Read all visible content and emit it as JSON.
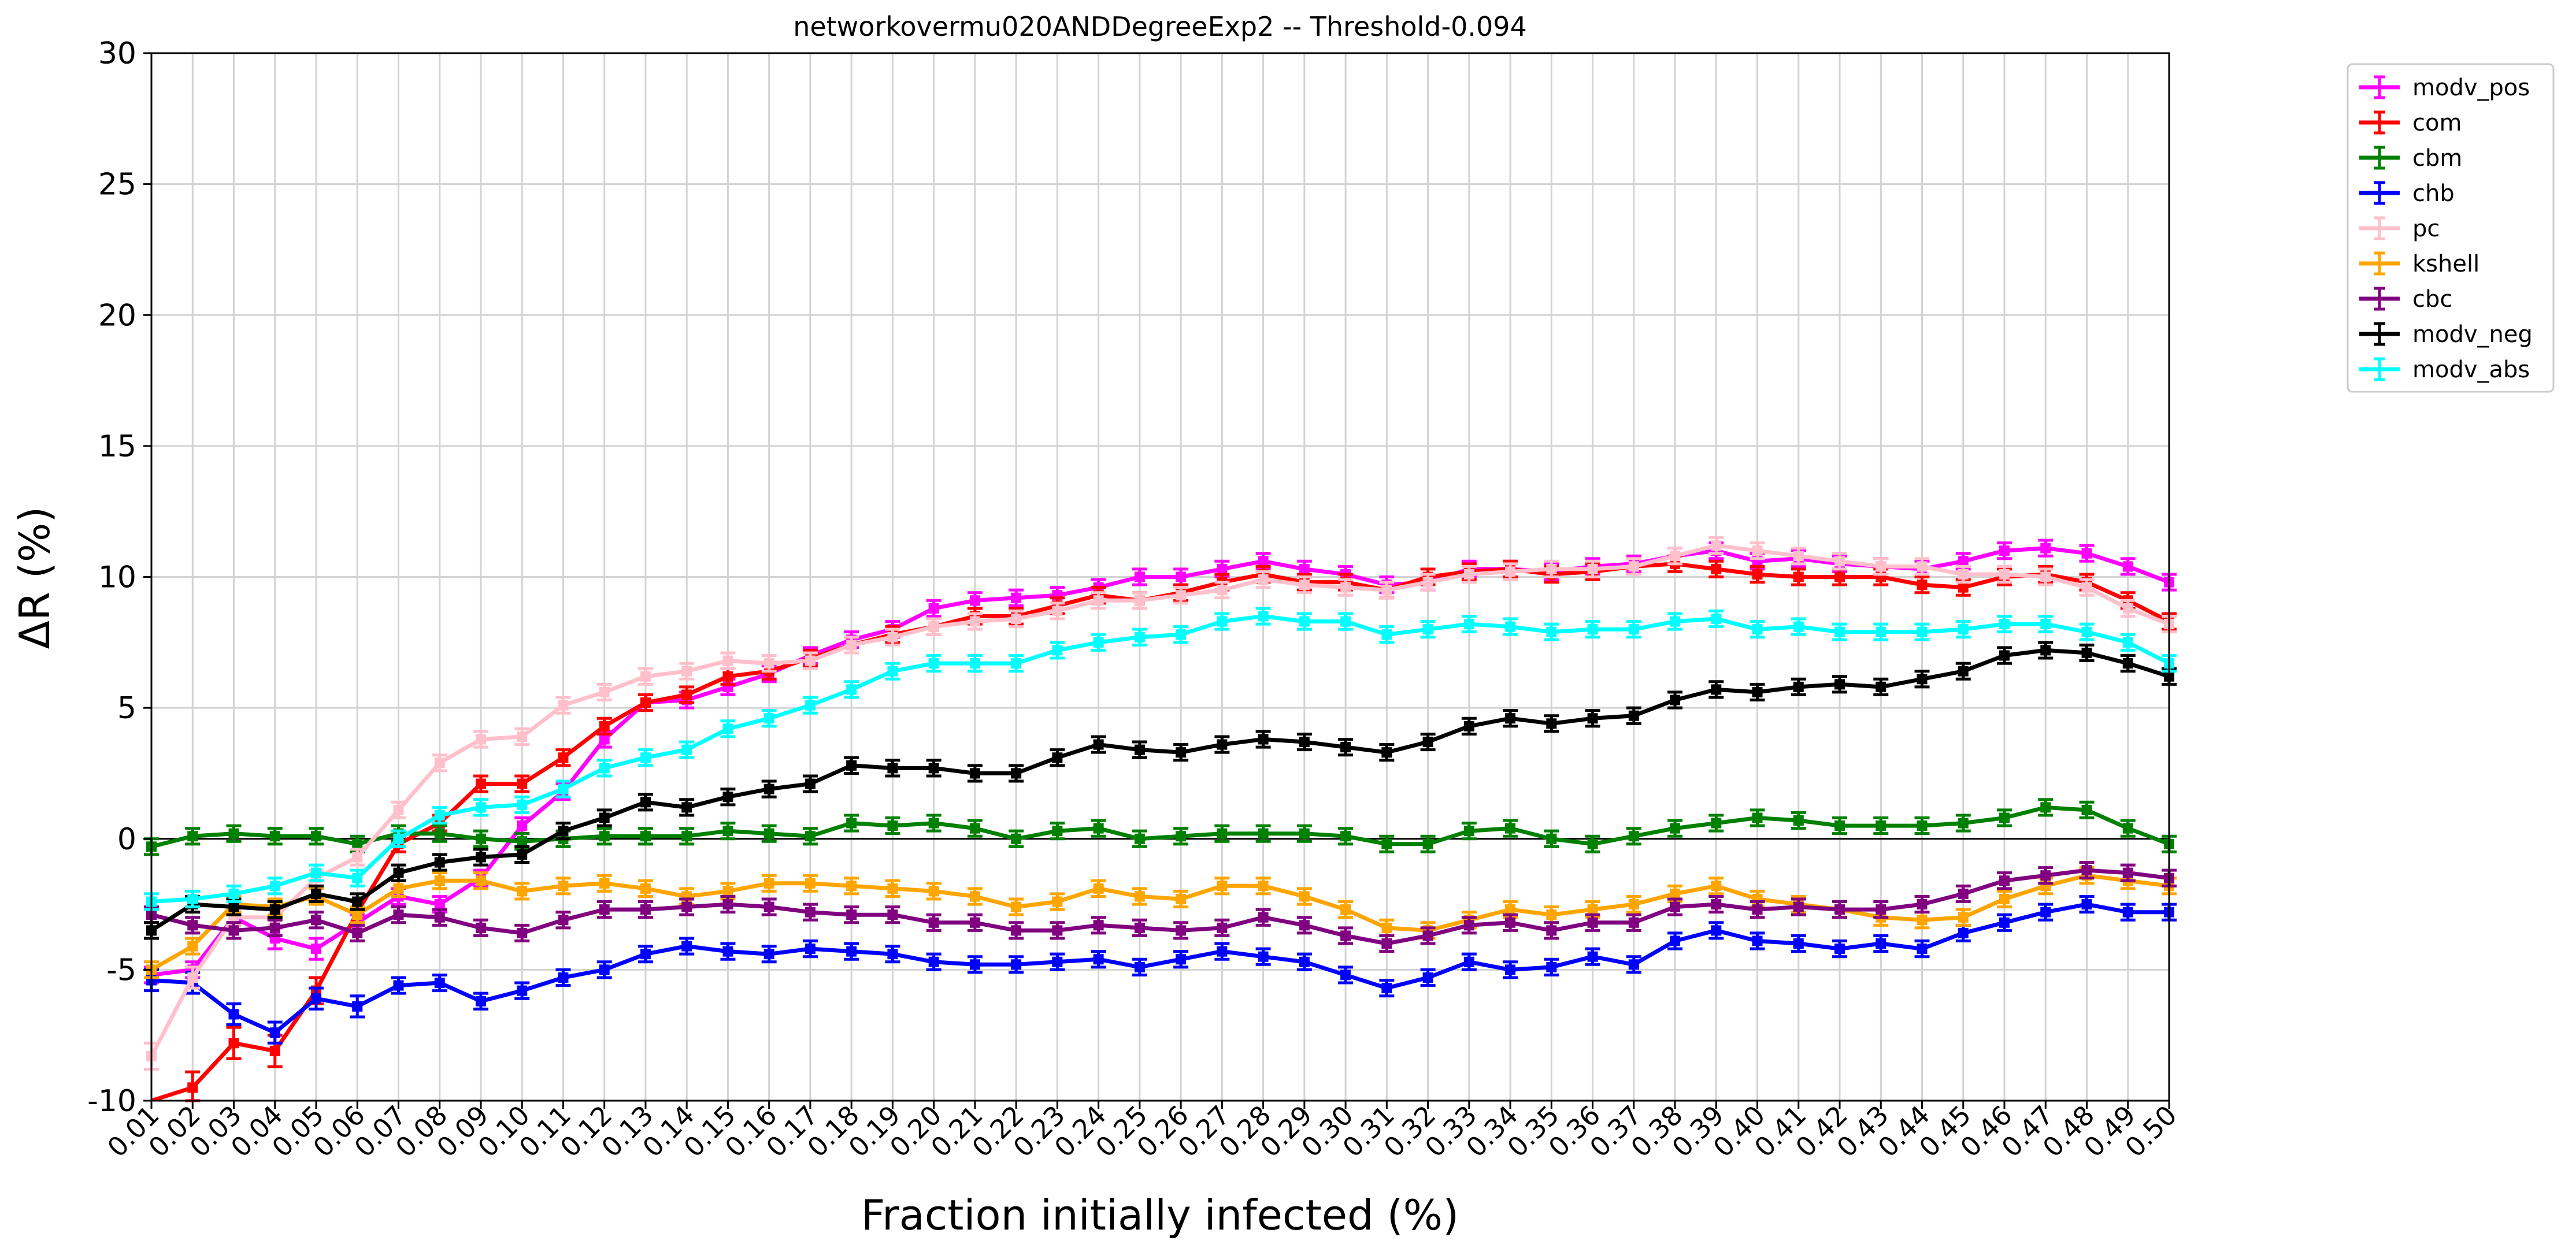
{
  "chart_data": {
    "type": "line",
    "title": "networkovermu020ANDDegreeExp2 -- Threshold-0.094",
    "xlabel": "Fraction initially infected (%)",
    "ylabel": "ΔR (%)",
    "ylim": [
      -10,
      30
    ],
    "yticks": [
      -10,
      -5,
      0,
      5,
      10,
      15,
      20,
      25,
      30
    ],
    "categories": [
      "0.01",
      "0.02",
      "0.03",
      "0.04",
      "0.05",
      "0.06",
      "0.07",
      "0.08",
      "0.09",
      "0.10",
      "0.11",
      "0.12",
      "0.13",
      "0.14",
      "0.15",
      "0.16",
      "0.17",
      "0.18",
      "0.19",
      "0.20",
      "0.21",
      "0.22",
      "0.23",
      "0.24",
      "0.25",
      "0.26",
      "0.27",
      "0.28",
      "0.29",
      "0.30",
      "0.31",
      "0.32",
      "0.33",
      "0.34",
      "0.35",
      "0.36",
      "0.37",
      "0.38",
      "0.39",
      "0.40",
      "0.41",
      "0.42",
      "0.43",
      "0.44",
      "0.45",
      "0.46",
      "0.47",
      "0.48",
      "0.49",
      "0.50"
    ],
    "grid": true,
    "legend_position": "outside-right",
    "zero_line": true,
    "series": [
      {
        "name": "modv_pos",
        "color": "#ff00ff",
        "values": [
          -5.2,
          -5.0,
          -3.0,
          -3.8,
          -4.2,
          -3.2,
          -2.2,
          -2.5,
          -1.5,
          0.5,
          1.8,
          3.8,
          5.2,
          5.3,
          5.8,
          6.3,
          7.0,
          7.6,
          8.0,
          8.8,
          9.1,
          9.2,
          9.3,
          9.6,
          10.0,
          10.0,
          10.3,
          10.6,
          10.3,
          10.1,
          9.7,
          9.8,
          10.3,
          10.3,
          10.2,
          10.4,
          10.5,
          10.8,
          11.0,
          10.6,
          10.7,
          10.5,
          10.4,
          10.3,
          10.6,
          11.0,
          11.1,
          10.9,
          10.4,
          9.8
        ],
        "errors": [
          0.3,
          0.3,
          0.3,
          0.4,
          0.4,
          0.3,
          0.3,
          0.3,
          0.3,
          0.3,
          0.3,
          0.3,
          0.3,
          0.3,
          0.3,
          0.3,
          0.3,
          0.3,
          0.3,
          0.3,
          0.3,
          0.3,
          0.3,
          0.3,
          0.3,
          0.3,
          0.3,
          0.3,
          0.3,
          0.3,
          0.3,
          0.3,
          0.3,
          0.3,
          0.3,
          0.3,
          0.3,
          0.3,
          0.3,
          0.3,
          0.3,
          0.3,
          0.3,
          0.3,
          0.3,
          0.3,
          0.3,
          0.3,
          0.3,
          0.3
        ]
      },
      {
        "name": "com",
        "color": "#ff0000",
        "values": [
          -12.5,
          -9.5,
          -7.8,
          -8.1,
          -5.8,
          -2.8,
          -0.2,
          0.6,
          2.1,
          2.1,
          3.1,
          4.3,
          5.2,
          5.5,
          6.2,
          6.4,
          6.9,
          7.4,
          7.8,
          8.1,
          8.5,
          8.5,
          8.9,
          9.3,
          9.1,
          9.4,
          9.8,
          10.1,
          9.8,
          9.8,
          9.5,
          10.0,
          10.2,
          10.3,
          10.1,
          10.2,
          10.4,
          10.5,
          10.3,
          10.1,
          10.0,
          10.0,
          10.0,
          9.7,
          9.6,
          10.0,
          10.1,
          9.8,
          9.1,
          8.3
        ],
        "errors": [
          0.6,
          0.6,
          0.6,
          0.6,
          0.5,
          0.4,
          0.3,
          0.3,
          0.3,
          0.3,
          0.3,
          0.3,
          0.3,
          0.3,
          0.3,
          0.3,
          0.3,
          0.3,
          0.3,
          0.3,
          0.3,
          0.3,
          0.3,
          0.3,
          0.3,
          0.3,
          0.3,
          0.3,
          0.3,
          0.3,
          0.3,
          0.3,
          0.3,
          0.3,
          0.3,
          0.3,
          0.3,
          0.3,
          0.3,
          0.3,
          0.3,
          0.3,
          0.3,
          0.3,
          0.3,
          0.3,
          0.3,
          0.3,
          0.3,
          0.3
        ]
      },
      {
        "name": "cbm",
        "color": "#008000",
        "values": [
          -0.3,
          0.1,
          0.2,
          0.1,
          0.1,
          -0.2,
          0.2,
          0.2,
          0.0,
          -0.1,
          0.0,
          0.1,
          0.1,
          0.1,
          0.3,
          0.2,
          0.1,
          0.6,
          0.5,
          0.6,
          0.4,
          0.0,
          0.3,
          0.4,
          0.0,
          0.1,
          0.2,
          0.2,
          0.2,
          0.1,
          -0.2,
          -0.2,
          0.3,
          0.4,
          0.0,
          -0.2,
          0.1,
          0.4,
          0.6,
          0.8,
          0.7,
          0.5,
          0.5,
          0.5,
          0.6,
          0.8,
          1.2,
          1.1,
          0.4,
          -0.2
        ],
        "errors": [
          0.3,
          0.3,
          0.3,
          0.3,
          0.3,
          0.3,
          0.3,
          0.3,
          0.3,
          0.3,
          0.3,
          0.3,
          0.3,
          0.3,
          0.3,
          0.3,
          0.3,
          0.3,
          0.3,
          0.3,
          0.3,
          0.3,
          0.3,
          0.3,
          0.3,
          0.3,
          0.3,
          0.3,
          0.3,
          0.3,
          0.3,
          0.3,
          0.3,
          0.3,
          0.3,
          0.3,
          0.3,
          0.3,
          0.3,
          0.3,
          0.3,
          0.3,
          0.3,
          0.3,
          0.3,
          0.3,
          0.3,
          0.3,
          0.3,
          0.3
        ]
      },
      {
        "name": "chb",
        "color": "#0000ff",
        "values": [
          -5.4,
          -5.5,
          -6.7,
          -7.4,
          -6.1,
          -6.4,
          -5.6,
          -5.5,
          -6.2,
          -5.8,
          -5.3,
          -5.0,
          -4.4,
          -4.1,
          -4.3,
          -4.4,
          -4.2,
          -4.3,
          -4.4,
          -4.7,
          -4.8,
          -4.8,
          -4.7,
          -4.6,
          -4.9,
          -4.6,
          -4.3,
          -4.5,
          -4.7,
          -5.2,
          -5.7,
          -5.3,
          -4.7,
          -5.0,
          -4.9,
          -4.5,
          -4.8,
          -3.9,
          -3.5,
          -3.9,
          -4.0,
          -4.2,
          -4.0,
          -4.2,
          -3.6,
          -3.2,
          -2.8,
          -2.5,
          -2.8,
          -2.8
        ],
        "errors": [
          0.4,
          0.4,
          0.4,
          0.4,
          0.4,
          0.4,
          0.3,
          0.3,
          0.3,
          0.3,
          0.3,
          0.3,
          0.3,
          0.3,
          0.3,
          0.3,
          0.3,
          0.3,
          0.3,
          0.3,
          0.3,
          0.3,
          0.3,
          0.3,
          0.3,
          0.3,
          0.3,
          0.3,
          0.3,
          0.3,
          0.3,
          0.3,
          0.3,
          0.3,
          0.3,
          0.3,
          0.3,
          0.3,
          0.3,
          0.3,
          0.3,
          0.3,
          0.3,
          0.3,
          0.3,
          0.3,
          0.3,
          0.3,
          0.3,
          0.3
        ]
      },
      {
        "name": "pc",
        "color": "#ffc0cb",
        "values": [
          -8.3,
          -5.3,
          -3.0,
          -3.0,
          -1.5,
          -0.7,
          1.1,
          2.9,
          3.8,
          3.9,
          5.1,
          5.6,
          6.2,
          6.4,
          6.8,
          6.7,
          6.8,
          7.4,
          7.7,
          8.1,
          8.3,
          8.4,
          8.7,
          9.1,
          9.1,
          9.3,
          9.5,
          9.9,
          9.7,
          9.6,
          9.5,
          9.8,
          10.1,
          10.2,
          10.3,
          10.3,
          10.4,
          10.8,
          11.2,
          11.0,
          10.8,
          10.6,
          10.4,
          10.4,
          10.1,
          10.1,
          10.0,
          9.6,
          8.8,
          8.2
        ],
        "errors": [
          0.5,
          0.4,
          0.3,
          0.3,
          0.3,
          0.3,
          0.3,
          0.3,
          0.3,
          0.3,
          0.3,
          0.3,
          0.3,
          0.3,
          0.3,
          0.3,
          0.3,
          0.3,
          0.3,
          0.3,
          0.3,
          0.3,
          0.3,
          0.3,
          0.3,
          0.3,
          0.3,
          0.3,
          0.3,
          0.3,
          0.3,
          0.3,
          0.3,
          0.3,
          0.3,
          0.3,
          0.3,
          0.3,
          0.3,
          0.3,
          0.3,
          0.3,
          0.3,
          0.3,
          0.3,
          0.3,
          0.3,
          0.3,
          0.3,
          0.3
        ]
      },
      {
        "name": "kshell",
        "color": "#ffa500",
        "values": [
          -5.0,
          -4.1,
          -2.5,
          -2.6,
          -2.2,
          -2.9,
          -1.9,
          -1.6,
          -1.6,
          -2.0,
          -1.8,
          -1.7,
          -1.9,
          -2.2,
          -2.0,
          -1.7,
          -1.7,
          -1.8,
          -1.9,
          -2.0,
          -2.2,
          -2.6,
          -2.4,
          -1.9,
          -2.2,
          -2.3,
          -1.8,
          -1.8,
          -2.2,
          -2.7,
          -3.4,
          -3.5,
          -3.1,
          -2.7,
          -2.9,
          -2.7,
          -2.5,
          -2.1,
          -1.8,
          -2.3,
          -2.5,
          -2.7,
          -3.0,
          -3.1,
          -3.0,
          -2.3,
          -1.8,
          -1.4,
          -1.6,
          -1.8
        ],
        "errors": [
          0.3,
          0.3,
          0.3,
          0.3,
          0.3,
          0.3,
          0.3,
          0.3,
          0.3,
          0.3,
          0.3,
          0.3,
          0.3,
          0.3,
          0.3,
          0.3,
          0.3,
          0.3,
          0.3,
          0.3,
          0.3,
          0.3,
          0.3,
          0.3,
          0.3,
          0.3,
          0.3,
          0.3,
          0.3,
          0.3,
          0.3,
          0.3,
          0.3,
          0.3,
          0.3,
          0.3,
          0.3,
          0.3,
          0.3,
          0.3,
          0.3,
          0.3,
          0.3,
          0.3,
          0.3,
          0.3,
          0.3,
          0.3,
          0.3,
          0.3
        ]
      },
      {
        "name": "cbc",
        "color": "#800080",
        "values": [
          -2.9,
          -3.3,
          -3.5,
          -3.4,
          -3.1,
          -3.6,
          -2.9,
          -3.0,
          -3.4,
          -3.6,
          -3.1,
          -2.7,
          -2.7,
          -2.6,
          -2.5,
          -2.6,
          -2.8,
          -2.9,
          -2.9,
          -3.2,
          -3.2,
          -3.5,
          -3.5,
          -3.3,
          -3.4,
          -3.5,
          -3.4,
          -3.0,
          -3.3,
          -3.7,
          -4.0,
          -3.7,
          -3.3,
          -3.2,
          -3.5,
          -3.2,
          -3.2,
          -2.6,
          -2.5,
          -2.7,
          -2.6,
          -2.7,
          -2.7,
          -2.5,
          -2.1,
          -1.6,
          -1.4,
          -1.2,
          -1.3,
          -1.5
        ],
        "errors": [
          0.3,
          0.3,
          0.3,
          0.3,
          0.3,
          0.3,
          0.3,
          0.3,
          0.3,
          0.3,
          0.3,
          0.3,
          0.3,
          0.3,
          0.3,
          0.3,
          0.3,
          0.3,
          0.3,
          0.3,
          0.3,
          0.3,
          0.3,
          0.3,
          0.3,
          0.3,
          0.3,
          0.3,
          0.3,
          0.3,
          0.3,
          0.3,
          0.3,
          0.3,
          0.3,
          0.3,
          0.3,
          0.3,
          0.3,
          0.3,
          0.3,
          0.3,
          0.3,
          0.3,
          0.3,
          0.3,
          0.3,
          0.3,
          0.3,
          0.3
        ]
      },
      {
        "name": "modv_neg",
        "color": "#000000",
        "values": [
          -3.5,
          -2.5,
          -2.6,
          -2.7,
          -2.1,
          -2.4,
          -1.3,
          -0.9,
          -0.7,
          -0.6,
          0.3,
          0.8,
          1.4,
          1.2,
          1.6,
          1.9,
          2.1,
          2.8,
          2.7,
          2.7,
          2.5,
          2.5,
          3.1,
          3.6,
          3.4,
          3.3,
          3.6,
          3.8,
          3.7,
          3.5,
          3.3,
          3.7,
          4.3,
          4.6,
          4.4,
          4.6,
          4.7,
          5.3,
          5.7,
          5.6,
          5.8,
          5.9,
          5.8,
          6.1,
          6.4,
          7.0,
          7.2,
          7.1,
          6.7,
          6.2
        ],
        "errors": [
          0.3,
          0.3,
          0.3,
          0.3,
          0.3,
          0.3,
          0.3,
          0.3,
          0.3,
          0.3,
          0.3,
          0.3,
          0.3,
          0.3,
          0.3,
          0.3,
          0.3,
          0.3,
          0.3,
          0.3,
          0.3,
          0.3,
          0.3,
          0.3,
          0.3,
          0.3,
          0.3,
          0.3,
          0.3,
          0.3,
          0.3,
          0.3,
          0.3,
          0.3,
          0.3,
          0.3,
          0.3,
          0.3,
          0.3,
          0.3,
          0.3,
          0.3,
          0.3,
          0.3,
          0.3,
          0.3,
          0.3,
          0.3,
          0.3,
          0.3
        ]
      },
      {
        "name": "modv_abs",
        "color": "#00ffff",
        "values": [
          -2.4,
          -2.3,
          -2.1,
          -1.8,
          -1.3,
          -1.5,
          0.0,
          0.9,
          1.2,
          1.3,
          1.9,
          2.7,
          3.1,
          3.4,
          4.2,
          4.6,
          5.1,
          5.7,
          6.4,
          6.7,
          6.7,
          6.7,
          7.2,
          7.5,
          7.7,
          7.8,
          8.3,
          8.5,
          8.3,
          8.3,
          7.8,
          8.0,
          8.2,
          8.1,
          7.9,
          8.0,
          8.0,
          8.3,
          8.4,
          8.0,
          8.1,
          7.9,
          7.9,
          7.9,
          8.0,
          8.2,
          8.2,
          7.9,
          7.5,
          6.7
        ],
        "errors": [
          0.3,
          0.3,
          0.3,
          0.3,
          0.3,
          0.3,
          0.3,
          0.3,
          0.3,
          0.3,
          0.3,
          0.3,
          0.3,
          0.3,
          0.3,
          0.3,
          0.3,
          0.3,
          0.3,
          0.3,
          0.3,
          0.3,
          0.3,
          0.3,
          0.3,
          0.3,
          0.3,
          0.3,
          0.3,
          0.3,
          0.3,
          0.3,
          0.3,
          0.3,
          0.3,
          0.3,
          0.3,
          0.3,
          0.3,
          0.3,
          0.3,
          0.3,
          0.3,
          0.3,
          0.3,
          0.3,
          0.3,
          0.3,
          0.3,
          0.3
        ]
      }
    ]
  }
}
